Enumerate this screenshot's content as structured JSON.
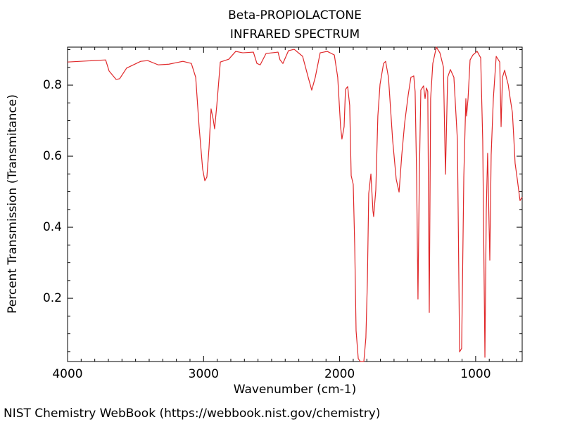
{
  "chart_data": {
    "type": "line",
    "title": "Beta-PROPIOLACTONE",
    "subtitle": "INFRARED SPECTRUM",
    "x_label": "Wavenumber (cm-1)",
    "y_label": "Percent Transmission (Transmitance)",
    "xlim": [
      4000,
      658
    ],
    "ylim": [
      0.022,
      0.907
    ],
    "xticks": [
      4000,
      3000,
      2000,
      1000
    ],
    "yticks": [
      0.2,
      0.4,
      0.6,
      0.8
    ],
    "xminorticks": [
      3900,
      3800,
      3700,
      3600,
      3500,
      3400,
      3300,
      3200,
      3100,
      2900,
      2800,
      2700,
      2600,
      2500,
      2400,
      2300,
      2200,
      2100,
      1900,
      1800,
      1700,
      1600,
      1500,
      1400,
      1300,
      1200,
      1100,
      900,
      800,
      700
    ],
    "yminorticks": [
      0.05,
      0.1,
      0.15,
      0.25,
      0.3,
      0.35,
      0.45,
      0.5,
      0.55,
      0.65,
      0.7,
      0.75,
      0.85,
      0.9
    ],
    "grid": false,
    "series": [
      {
        "name": "Beta-PROPIOLACTONE",
        "color": "#e0282a",
        "x": [
          4000,
          3720,
          3695,
          3643,
          3617,
          3566,
          3462,
          3410,
          3333,
          3255,
          3152,
          3090,
          3058,
          3033,
          3007,
          2991,
          2976,
          2960,
          2945,
          2929,
          2919,
          2903,
          2877,
          2815,
          2764,
          2712,
          2634,
          2608,
          2584,
          2541,
          2453,
          2438,
          2417,
          2376,
          2334,
          2272,
          2231,
          2205,
          2179,
          2143,
          2091,
          2039,
          2014,
          1993,
          1983,
          1967,
          1957,
          1941,
          1926,
          1915,
          1900,
          1889,
          1879,
          1863,
          1848,
          1822,
          1807,
          1796,
          1786,
          1770,
          1755,
          1750,
          1734,
          1719,
          1703,
          1677,
          1662,
          1641,
          1610,
          1584,
          1563,
          1543,
          1522,
          1496,
          1476,
          1455,
          1445,
          1434,
          1424,
          1414,
          1403,
          1383,
          1372,
          1362,
          1352,
          1341,
          1331,
          1315,
          1289,
          1263,
          1237,
          1222,
          1206,
          1186,
          1160,
          1134,
          1118,
          1103,
          1087,
          1072,
          1067,
          1056,
          1041,
          1020,
          989,
          963,
          948,
          932,
          922,
          912,
          896,
          886,
          870,
          849,
          823,
          813,
          803,
          787,
          772,
          761,
          746,
          730,
          720,
          710,
          694,
          674,
          658
        ],
        "values": [
          0.865,
          0.871,
          0.84,
          0.816,
          0.818,
          0.848,
          0.867,
          0.869,
          0.857,
          0.859,
          0.867,
          0.861,
          0.822,
          0.683,
          0.564,
          0.531,
          0.541,
          0.624,
          0.733,
          0.703,
          0.677,
          0.743,
          0.865,
          0.873,
          0.895,
          0.891,
          0.893,
          0.861,
          0.857,
          0.889,
          0.893,
          0.871,
          0.861,
          0.897,
          0.901,
          0.881,
          0.822,
          0.786,
          0.822,
          0.891,
          0.895,
          0.885,
          0.822,
          0.683,
          0.648,
          0.683,
          0.788,
          0.796,
          0.743,
          0.545,
          0.521,
          0.347,
          0.109,
          0.03,
          0.022,
          0.022,
          0.089,
          0.248,
          0.495,
          0.55,
          0.446,
          0.43,
          0.505,
          0.713,
          0.802,
          0.861,
          0.867,
          0.822,
          0.644,
          0.535,
          0.499,
          0.604,
          0.693,
          0.772,
          0.822,
          0.826,
          0.782,
          0.545,
          0.198,
          0.545,
          0.786,
          0.798,
          0.762,
          0.792,
          0.782,
          0.16,
          0.762,
          0.861,
          0.907,
          0.891,
          0.851,
          0.549,
          0.822,
          0.844,
          0.822,
          0.644,
          0.049,
          0.059,
          0.545,
          0.762,
          0.713,
          0.762,
          0.871,
          0.885,
          0.895,
          0.877,
          0.644,
          0.034,
          0.446,
          0.608,
          0.307,
          0.604,
          0.762,
          0.881,
          0.865,
          0.683,
          0.822,
          0.842,
          0.818,
          0.802,
          0.762,
          0.723,
          0.654,
          0.58,
          0.535,
          0.475,
          0.485
        ]
      }
    ]
  },
  "footer": "NIST Chemistry WebBook (https://webbook.nist.gov/chemistry)"
}
